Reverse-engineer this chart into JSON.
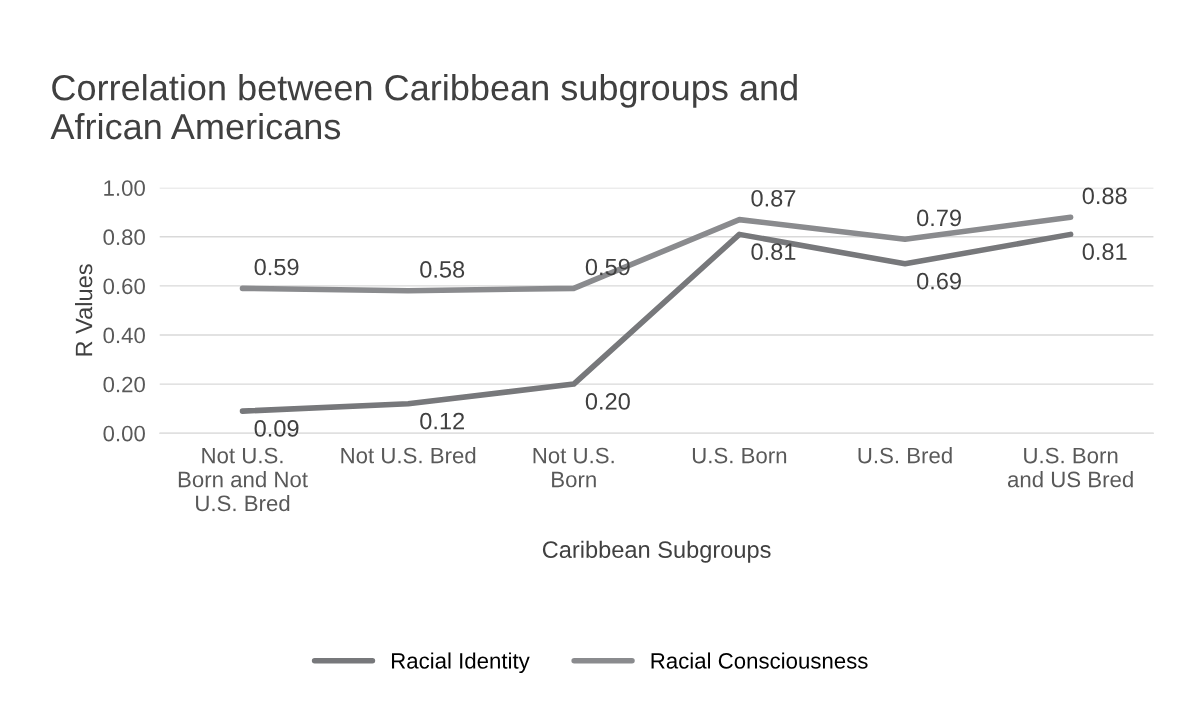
{
  "chart_data": {
    "type": "line",
    "title": "Correlation between Caribbean subgroups and\nAfrican Americans",
    "xlabel": "Caribbean Subgroups",
    "ylabel": "R Values",
    "categories": [
      "Not U.S.\nBorn and Not\nU.S. Bred",
      "Not U.S. Bred",
      "Not U.S.\nBorn",
      "U.S. Born",
      "U.S. Bred",
      "U.S. Born\nand US Bred"
    ],
    "series": [
      {
        "name": "Racial Identity",
        "color": "#77787b",
        "values": [
          0.09,
          0.12,
          0.2,
          0.81,
          0.69,
          0.81
        ],
        "value_labels": [
          "0.09",
          "0.12",
          "0.20",
          "0.81",
          "0.69",
          "0.81"
        ]
      },
      {
        "name": "Racial Consciousness",
        "color": "#8a8b8e",
        "values": [
          0.59,
          0.58,
          0.59,
          0.87,
          0.79,
          0.88
        ],
        "value_labels": [
          "0.59",
          "0.58",
          "0.59",
          "0.87",
          "0.79",
          "0.88"
        ]
      }
    ],
    "ylim": [
      0,
      1
    ],
    "yticks": [
      {
        "value": 0,
        "label": "0.00"
      },
      {
        "value": 0.2,
        "label": "0.20"
      },
      {
        "value": 0.4,
        "label": "0.40"
      },
      {
        "value": 0.6,
        "label": "0.60"
      },
      {
        "value": 0.8,
        "label": "0.80"
      },
      {
        "value": 1,
        "label": "1.00"
      }
    ],
    "grid": "y",
    "legend": "bottom",
    "marker": "none",
    "line_style": "solid"
  }
}
